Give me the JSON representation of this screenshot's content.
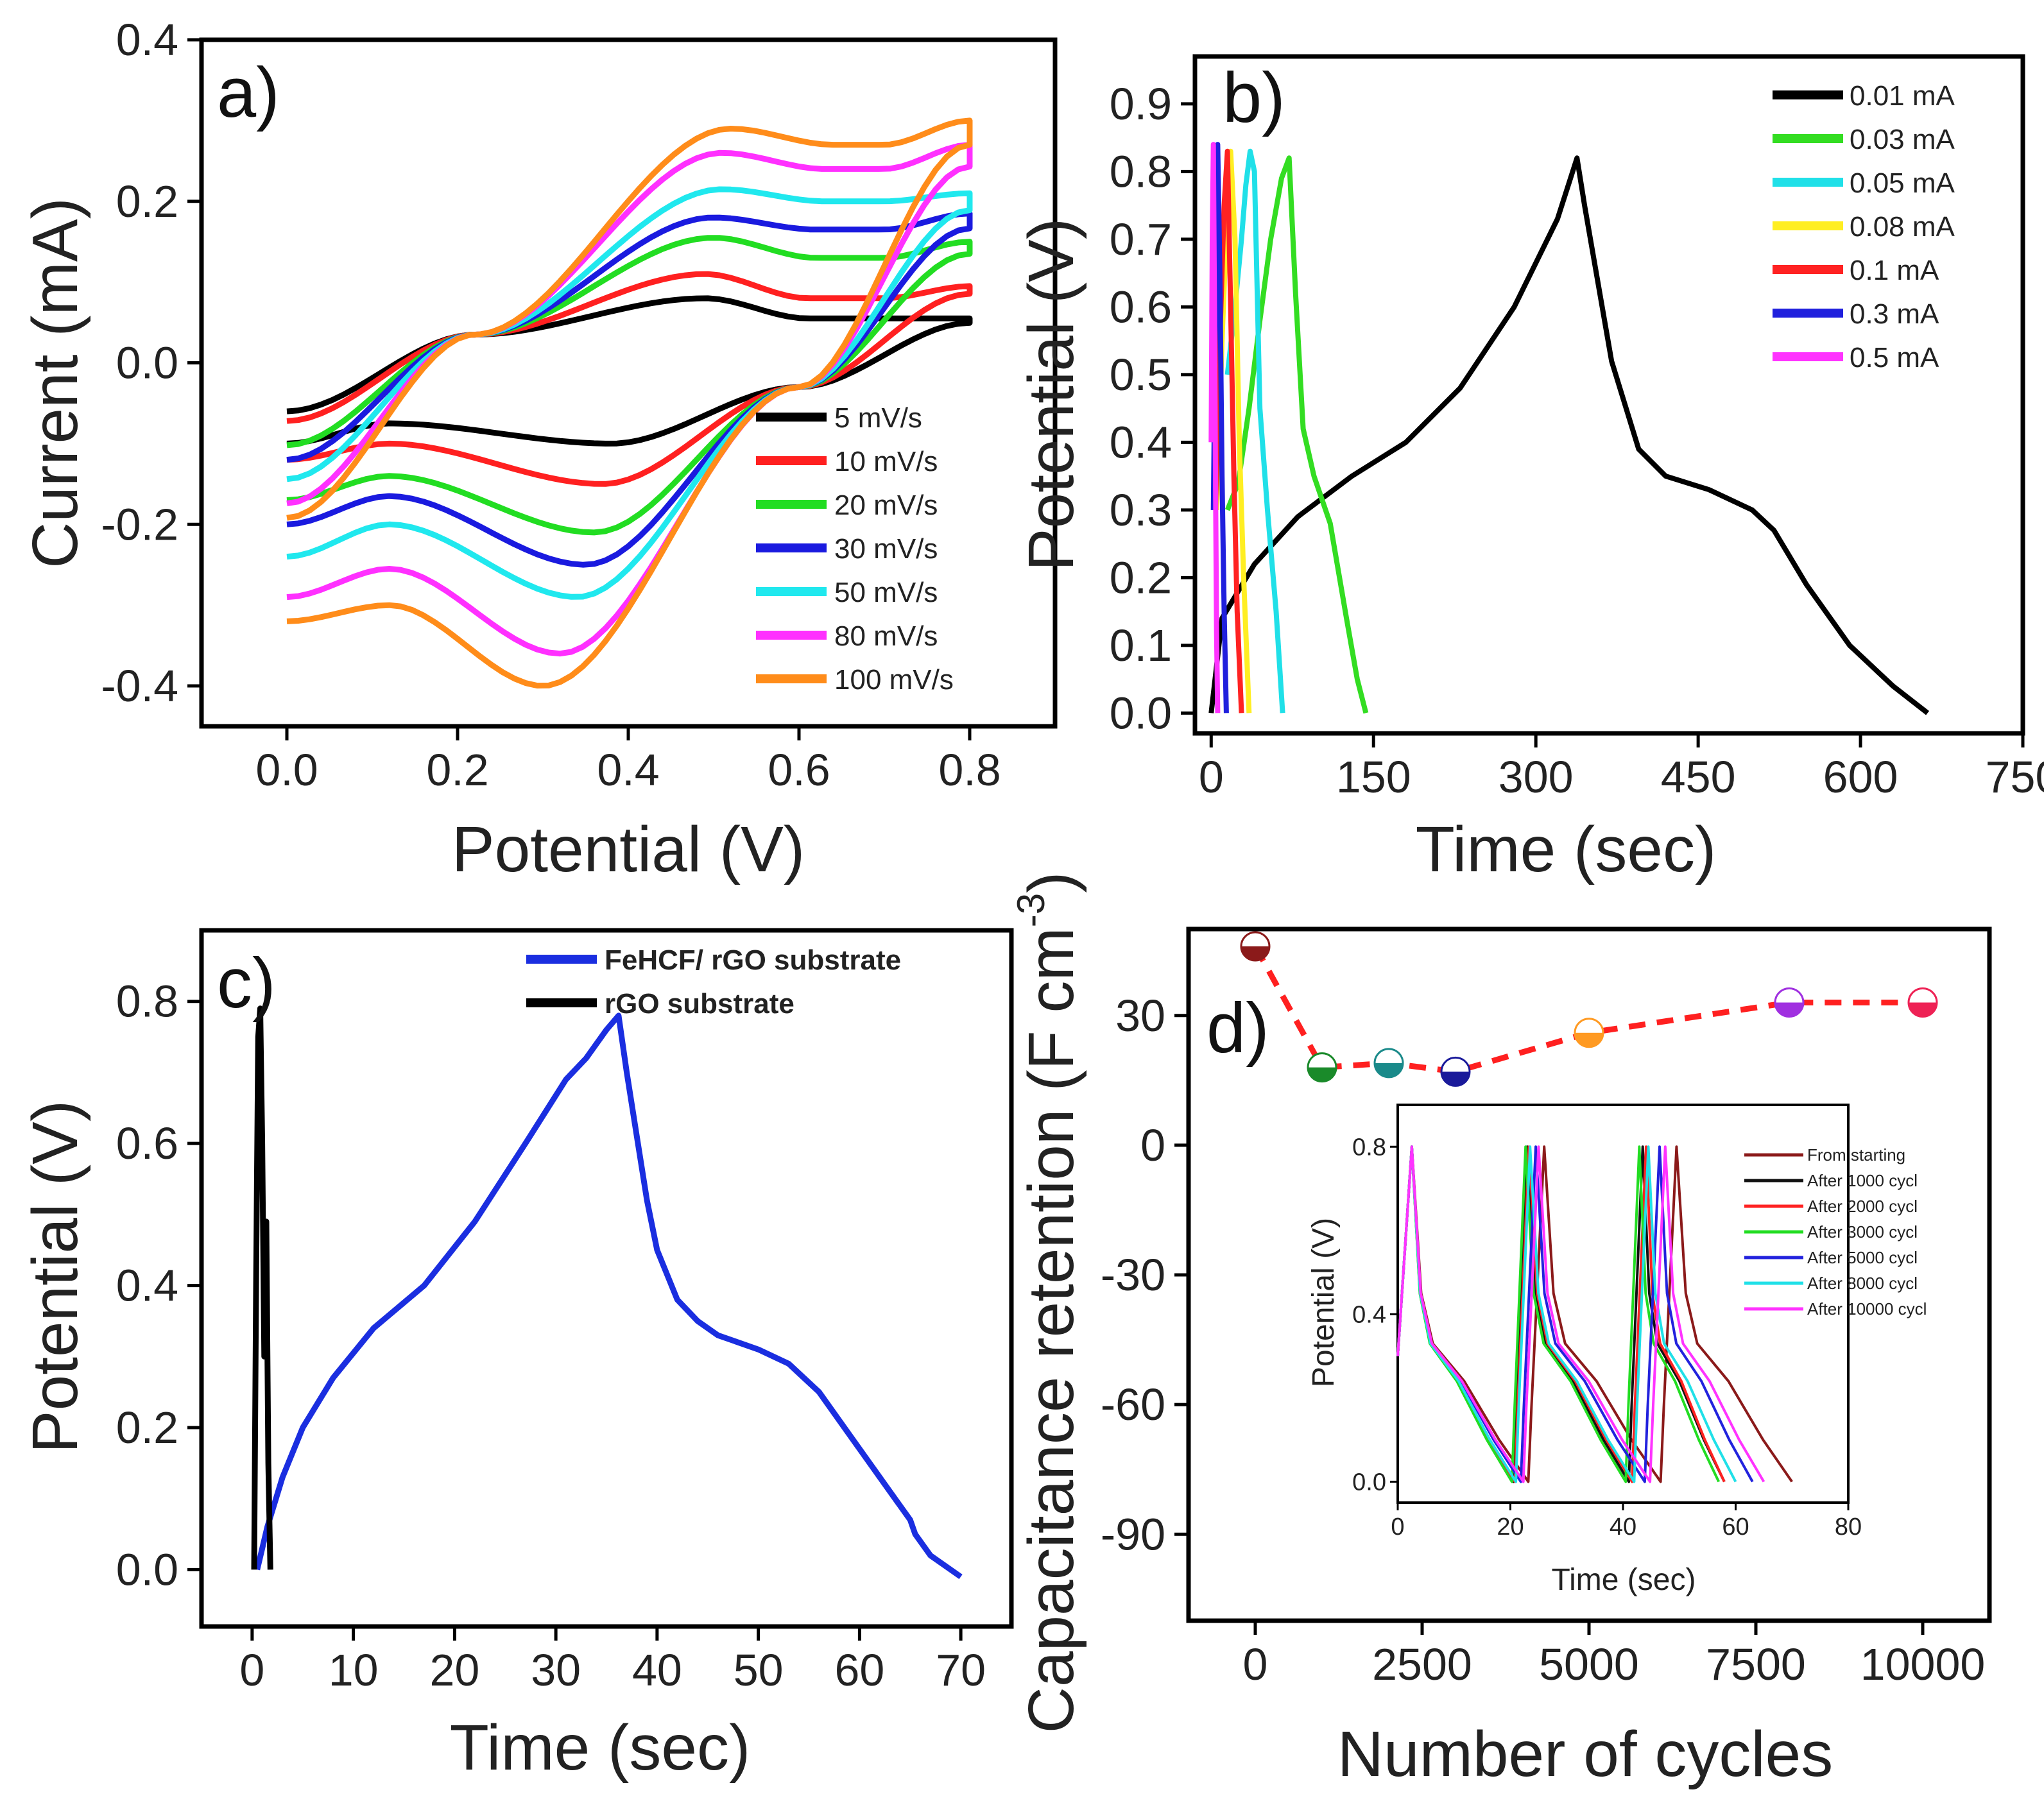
{
  "chart_data": [
    {
      "id": "a",
      "type": "line",
      "panel_label": "a)",
      "xlabel": "Potential (V)",
      "ylabel": "Current (mA)",
      "xlim": [
        -0.1,
        0.9
      ],
      "ylim": [
        -0.45,
        0.4
      ],
      "xticks": [
        "0.0",
        "0.2",
        "0.4",
        "0.6",
        "0.8"
      ],
      "xtick_values": [
        0.0,
        0.2,
        0.4,
        0.6,
        0.8
      ],
      "yticks": [
        "-0.4",
        "-0.2",
        "0.0",
        "0.2",
        "0.4"
      ],
      "ytick_values": [
        -0.4,
        -0.2,
        0.0,
        0.2,
        0.4
      ],
      "legend_position": "bottom-right",
      "series": [
        {
          "name": "5 mV/s",
          "color": "#000000",
          "ox": 0.49,
          "oy": 0.08,
          "rx": 0.38,
          "ry": -0.1,
          "plat_hi": 0.055,
          "plat_lo": -0.075,
          "start_lo": -0.1,
          "end_hi": 0.055
        },
        {
          "name": "10 mV/s",
          "color": "#ff2020",
          "ox": 0.49,
          "oy": 0.11,
          "rx": 0.37,
          "ry": -0.15,
          "plat_hi": 0.08,
          "plat_lo": -0.1,
          "start_lo": -0.12,
          "end_hi": 0.095
        },
        {
          "name": "20 mV/s",
          "color": "#22dd22",
          "ox": 0.5,
          "oy": 0.155,
          "rx": 0.36,
          "ry": -0.21,
          "plat_hi": 0.13,
          "plat_lo": -0.14,
          "start_lo": -0.17,
          "end_hi": 0.15
        },
        {
          "name": "30 mV/s",
          "color": "#1a1adf",
          "ox": 0.5,
          "oy": 0.18,
          "rx": 0.35,
          "ry": -0.25,
          "plat_hi": 0.165,
          "plat_lo": -0.165,
          "start_lo": -0.2,
          "end_hi": 0.185
        },
        {
          "name": "50 mV/s",
          "color": "#20e8ee",
          "ox": 0.51,
          "oy": 0.215,
          "rx": 0.34,
          "ry": -0.29,
          "plat_hi": 0.2,
          "plat_lo": -0.2,
          "start_lo": -0.24,
          "end_hi": 0.21
        },
        {
          "name": "80 mV/s",
          "color": "#ff30ff",
          "ox": 0.51,
          "oy": 0.26,
          "rx": 0.32,
          "ry": -0.36,
          "plat_hi": 0.24,
          "plat_lo": -0.255,
          "start_lo": -0.29,
          "end_hi": 0.27
        },
        {
          "name": "100 mV/s",
          "color": "#ff8c1a",
          "ox": 0.52,
          "oy": 0.29,
          "rx": 0.3,
          "ry": -0.4,
          "plat_hi": 0.27,
          "plat_lo": -0.3,
          "start_lo": -0.32,
          "end_hi": 0.3
        }
      ]
    },
    {
      "id": "b",
      "type": "line",
      "panel_label": "b)",
      "xlabel": "Time (sec)",
      "ylabel": "Potential (V)",
      "xlim": [
        -15,
        750
      ],
      "ylim": [
        -0.03,
        0.97
      ],
      "xticks": [
        "0",
        "150",
        "300",
        "450",
        "600",
        "750"
      ],
      "xtick_values": [
        0,
        150,
        300,
        450,
        600,
        750
      ],
      "yticks": [
        "0.0",
        "0.1",
        "0.2",
        "0.3",
        "0.4",
        "0.5",
        "0.6",
        "0.7",
        "0.8",
        "0.9"
      ],
      "ytick_values": [
        0.0,
        0.1,
        0.2,
        0.3,
        0.4,
        0.5,
        0.6,
        0.7,
        0.8,
        0.9
      ],
      "legend_position": "top-right",
      "series": [
        {
          "name": "0.01 mA",
          "color": "#000000",
          "x": [
            0,
            10,
            40,
            80,
            130,
            180,
            230,
            280,
            320,
            338,
            345,
            370,
            395,
            420,
            460,
            500,
            520,
            550,
            590,
            630,
            662
          ],
          "y": [
            0,
            0.14,
            0.22,
            0.29,
            0.35,
            0.4,
            0.48,
            0.6,
            0.73,
            0.82,
            0.75,
            0.52,
            0.39,
            0.35,
            0.33,
            0.3,
            0.27,
            0.19,
            0.1,
            0.04,
            0
          ]
        },
        {
          "name": "0.03 mA",
          "color": "#33dd22",
          "x": [
            15,
            25,
            35,
            45,
            55,
            65,
            72,
            78,
            85,
            95,
            110,
            125,
            135,
            143
          ],
          "y": [
            0.3,
            0.34,
            0.45,
            0.58,
            0.7,
            0.79,
            0.82,
            0.62,
            0.42,
            0.35,
            0.28,
            0.14,
            0.05,
            0
          ]
        },
        {
          "name": "0.05 mA",
          "color": "#20e0e8",
          "x": [
            15,
            22,
            28,
            32,
            36,
            40,
            45,
            52,
            60,
            66
          ],
          "y": [
            0.5,
            0.6,
            0.7,
            0.78,
            0.83,
            0.8,
            0.45,
            0.3,
            0.15,
            0
          ]
        },
        {
          "name": "0.08 mA",
          "color": "#ffee22",
          "x": [
            5,
            10,
            15,
            18,
            22,
            26,
            30,
            35
          ],
          "y": [
            0.3,
            0.55,
            0.75,
            0.83,
            0.7,
            0.4,
            0.2,
            0
          ]
        },
        {
          "name": "0.1 mA",
          "color": "#ff2222",
          "x": [
            4,
            8,
            12,
            15,
            18,
            21,
            24,
            28
          ],
          "y": [
            0.3,
            0.55,
            0.75,
            0.83,
            0.6,
            0.35,
            0.15,
            0
          ]
        },
        {
          "name": "0.3 mA",
          "color": "#2020dd",
          "x": [
            2,
            4,
            6,
            8,
            10,
            12,
            14
          ],
          "y": [
            0.3,
            0.6,
            0.84,
            0.65,
            0.35,
            0.15,
            0
          ]
        },
        {
          "name": "0.5 mA",
          "color": "#ff33ff",
          "x": [
            0,
            1,
            2,
            3,
            4,
            5,
            6
          ],
          "y": [
            0.4,
            0.7,
            0.84,
            0.6,
            0.35,
            0.12,
            0
          ]
        }
      ]
    },
    {
      "id": "c",
      "type": "line",
      "panel_label": "c)",
      "xlabel": "Time (sec)",
      "ylabel": "Potential (V)",
      "xlim": [
        -5,
        75
      ],
      "ylim": [
        -0.08,
        0.9
      ],
      "xticks": [
        "0",
        "10",
        "20",
        "30",
        "40",
        "50",
        "60",
        "70"
      ],
      "xtick_values": [
        0,
        10,
        20,
        30,
        40,
        50,
        60,
        70
      ],
      "yticks": [
        "0.0",
        "0.2",
        "0.4",
        "0.6",
        "0.8"
      ],
      "ytick_values": [
        0.0,
        0.2,
        0.4,
        0.6,
        0.8
      ],
      "legend_position": "top-center",
      "series": [
        {
          "name": "FeHCF/ rGO substrate",
          "color": "#1a2ee0",
          "x": [
            0.5,
            1.5,
            3,
            5,
            8,
            12,
            17,
            22,
            27,
            31,
            33,
            35,
            36.2,
            37,
            38,
            39,
            40,
            42,
            44,
            46,
            50,
            53,
            56,
            59,
            62,
            65,
            65.5,
            67,
            70
          ],
          "y": [
            0.0,
            0.06,
            0.13,
            0.2,
            0.27,
            0.34,
            0.4,
            0.49,
            0.6,
            0.69,
            0.72,
            0.76,
            0.78,
            0.7,
            0.61,
            0.52,
            0.45,
            0.38,
            0.35,
            0.33,
            0.31,
            0.29,
            0.25,
            0.19,
            0.13,
            0.07,
            0.05,
            0.02,
            -0.01
          ]
        },
        {
          "name": "rGO substrate",
          "color": "#000000",
          "x": [
            0.2,
            0.4,
            0.6,
            0.8,
            1.0,
            1.2,
            1.4,
            1.6,
            1.8
          ],
          "y": [
            0.0,
            0.42,
            0.75,
            0.79,
            0.6,
            0.3,
            0.49,
            0.15,
            0.0
          ]
        }
      ]
    },
    {
      "id": "d",
      "type": "scatter",
      "panel_label": "d)",
      "xlabel": "Number of cycles",
      "ylabel": "Capacitance retention (F cm",
      "ylabel_sup": "-3",
      "xlim": [
        -1000,
        11000
      ],
      "ylim": [
        -110,
        50
      ],
      "xticks": [
        "0",
        "2500",
        "5000",
        "7500",
        "10000"
      ],
      "xtick_values": [
        0,
        2500,
        5000,
        7500,
        10000
      ],
      "yticks": [
        "-90",
        "-60",
        "-30",
        "0",
        "30"
      ],
      "ytick_values": [
        -90,
        -60,
        -30,
        0,
        30
      ],
      "points": [
        {
          "x": 0,
          "y": 46,
          "color": "#8b1a1a"
        },
        {
          "x": 1000,
          "y": 18,
          "color": "#1a8a2a"
        },
        {
          "x": 2000,
          "y": 19,
          "color": "#1a8a8a"
        },
        {
          "x": 3000,
          "y": 17,
          "color": "#1a1a9a"
        },
        {
          "x": 5000,
          "y": 26,
          "color": "#ff9a22"
        },
        {
          "x": 8000,
          "y": 33,
          "color": "#a030e0"
        },
        {
          "x": 10000,
          "y": 33,
          "color": "#ee2255"
        }
      ],
      "line_color": "#ff2020",
      "inset": {
        "xlabel": "Time (sec)",
        "ylabel": "Potential (V)",
        "xlim": [
          0,
          80
        ],
        "ylim": [
          -0.05,
          0.9
        ],
        "xticks": [
          "0",
          "20",
          "40",
          "60",
          "80"
        ],
        "xtick_values": [
          0,
          20,
          40,
          60,
          80
        ],
        "yticks": [
          "0.0",
          "0.4",
          "0.8"
        ],
        "ytick_values": [
          0.0,
          0.4,
          0.8
        ],
        "series": [
          {
            "name": "From starting",
            "color": "#8b1a1a",
            "period": 23.5,
            "start": 0,
            "end": 70
          },
          {
            "name": "After 1000 cycl",
            "color": "#111111",
            "period": 20.5,
            "start": 0,
            "end": 58
          },
          {
            "name": "After 2000 cycl",
            "color": "#ff2222",
            "period": 20.8,
            "start": 0,
            "end": 58
          },
          {
            "name": "After 3000 cycl",
            "color": "#22dd22",
            "period": 20.2,
            "start": 0,
            "end": 57
          },
          {
            "name": "After 5000 cycl",
            "color": "#2222dd",
            "period": 22.0,
            "start": 0,
            "end": 63
          },
          {
            "name": "After 8000 cycl",
            "color": "#20e0e8",
            "period": 21.0,
            "start": 0,
            "end": 60
          },
          {
            "name": "After 10000 cycl",
            "color": "#ff33ff",
            "period": 22.5,
            "start": 0,
            "end": 65
          }
        ]
      }
    }
  ]
}
